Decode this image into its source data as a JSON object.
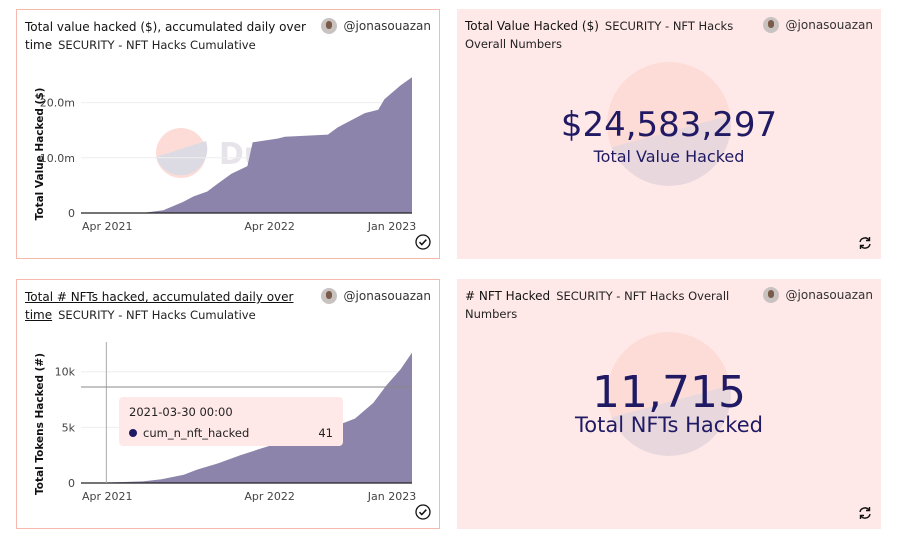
{
  "colors": {
    "area": "#8c84ab",
    "accent": "#1f1a63",
    "card_bg": "#ffe9e8",
    "border": "#f5b9ae"
  },
  "cards": [
    {
      "title": "Total value hacked ($), accumulated daily over time",
      "subtitle": "SECURITY - NFT Hacks Cumulative",
      "author": "@jonasouazan",
      "status_icon": "check-circle-icon"
    },
    {
      "title": "Total Value Hacked ($)",
      "subtitle": "SECURITY - NFT Hacks Overall Numbers",
      "author": "@jonasouazan",
      "value": "$24,583,297",
      "label": "Total Value Hacked",
      "status_icon": "refresh-icon"
    },
    {
      "title": "Total # NFTs hacked, accumulated daily over time",
      "subtitle": "SECURITY - NFT Hacks Cumulative",
      "author": "@jonasouazan",
      "status_icon": "check-circle-icon",
      "tooltip": {
        "date": "2021-03-30 00:00",
        "series": "cum_n_nft_hacked",
        "value": "41"
      }
    },
    {
      "title": "# NFT Hacked",
      "subtitle": "SECURITY - NFT Hacks Overall Numbers",
      "author": "@jonasouazan",
      "value": "11,715",
      "label": "Total NFTs Hacked",
      "status_icon": "refresh-icon"
    }
  ],
  "watermark": "Dune",
  "chart_data": [
    {
      "type": "area",
      "ylabel": "Total Value Hacked ($)",
      "xlabel": "",
      "xticks": [
        "Apr 2021",
        "Apr 2022",
        "Jan 2023"
      ],
      "yticks": [
        "0",
        "10.0m",
        "20.0m"
      ],
      "ytick_values": [
        0,
        10000000,
        20000000
      ],
      "xlim": [
        "2021-02-01",
        "2023-02-15"
      ],
      "ylim": [
        0,
        25000000
      ],
      "grid": true,
      "x": [
        "2021-02-01",
        "2021-06-20",
        "2021-08-05",
        "2021-09-18",
        "2021-10-12",
        "2021-11-12",
        "2021-12-05",
        "2022-01-05",
        "2022-02-10",
        "2022-02-22",
        "2022-04-20",
        "2022-05-05",
        "2022-08-10",
        "2022-09-01",
        "2022-11-01",
        "2022-12-01",
        "2022-12-15",
        "2023-01-20",
        "2023-02-15"
      ],
      "y": [
        0,
        20000,
        500000,
        2000000,
        3000000,
        3900000,
        5300000,
        7100000,
        8500000,
        12800000,
        13500000,
        13800000,
        14200000,
        15500000,
        18100000,
        18700000,
        20600000,
        23100000,
        24583297
      ]
    },
    {
      "type": "area",
      "ylabel": "Total Tokens Hacked (#)",
      "xlabel": "",
      "xticks": [
        "Apr 2021",
        "Apr 2022",
        "Jan 2023"
      ],
      "yticks": [
        "0",
        "5k",
        "10k"
      ],
      "ytick_values": [
        0,
        5000,
        10000
      ],
      "xlim": [
        "2021-02-01",
        "2023-02-15"
      ],
      "ylim": [
        0,
        12400
      ],
      "grid": true,
      "x": [
        "2021-02-01",
        "2021-03-30",
        "2021-06-20",
        "2021-08-01",
        "2021-09-20",
        "2021-10-20",
        "2021-12-05",
        "2022-01-25",
        "2022-03-10",
        "2022-09-15",
        "2022-10-10",
        "2022-11-20",
        "2022-12-20",
        "2023-01-20",
        "2023-02-15"
      ],
      "y": [
        0,
        41,
        140,
        330,
        740,
        1200,
        1750,
        2500,
        3060,
        5400,
        5800,
        7200,
        8800,
        10200,
        11715
      ]
    }
  ]
}
